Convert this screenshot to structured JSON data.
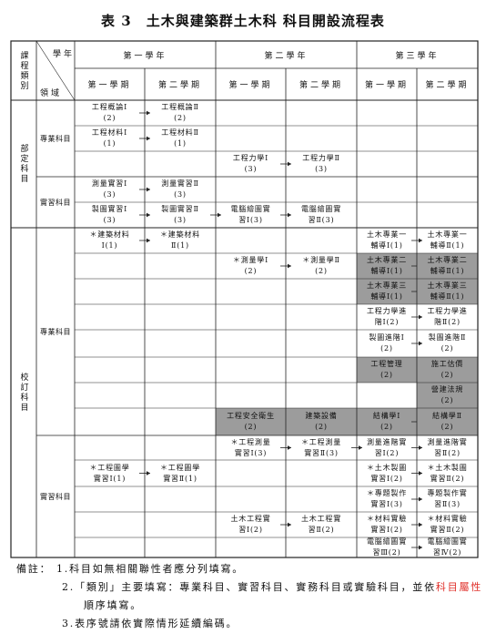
{
  "header": {
    "title": "表 3　土木與建築群土木科 科目開設流程表"
  },
  "table": {
    "category_label": "課程類別",
    "year_label": "學年",
    "domain_label": "領域",
    "years": [
      "第一學年",
      "第二學年",
      "第三學年"
    ],
    "semesters": [
      "第一學期",
      "第二學期",
      "第一學期",
      "第二學期",
      "第一學期",
      "第二學期"
    ],
    "shade_color": "#9c9c9c",
    "sections": [
      {
        "name": "部定科目",
        "groups": [
          {
            "name": "專業科目",
            "rows": [
              [
                {
                  "lines": [
                    "工程概論Ⅰ",
                    "(2)"
                  ],
                  "arrow": true
                },
                {
                  "lines": [
                    "工程概論Ⅱ",
                    "(2)"
                  ]
                },
                null,
                null,
                null,
                null
              ],
              [
                {
                  "lines": [
                    "工程材料Ⅰ",
                    "(1)"
                  ],
                  "arrow": true
                },
                {
                  "lines": [
                    "工程材料Ⅱ",
                    "(1)"
                  ]
                },
                null,
                null,
                null,
                null
              ],
              [
                null,
                null,
                {
                  "lines": [
                    "工程力學Ⅰ",
                    "(3)"
                  ],
                  "arrow": true
                },
                {
                  "lines": [
                    "工程力學Ⅱ",
                    "(3)"
                  ]
                },
                null,
                null
              ]
            ]
          },
          {
            "name": "實習科目",
            "rows": [
              [
                {
                  "lines": [
                    "測量實習Ⅰ",
                    "(3)"
                  ],
                  "arrow": true
                },
                {
                  "lines": [
                    "測量實習Ⅱ",
                    "(3)"
                  ]
                },
                null,
                null,
                null,
                null
              ],
              [
                {
                  "lines": [
                    "製圖實習Ⅰ",
                    "(3)"
                  ],
                  "arrow": true
                },
                {
                  "lines": [
                    "製圖實習Ⅱ",
                    "(3)"
                  ],
                  "arrow": true
                },
                {
                  "lines": [
                    "電腦繪圖實",
                    "習Ⅰ(3)"
                  ],
                  "arrow": true
                },
                {
                  "lines": [
                    "電腦繪圖實",
                    "習Ⅱ(3)"
                  ]
                },
                null,
                null
              ]
            ]
          }
        ]
      },
      {
        "name": "校訂科目",
        "groups": [
          {
            "name": "專業科目",
            "rows": [
              [
                {
                  "lines": [
                    "＊建築材料",
                    "Ⅰ(1)"
                  ],
                  "arrow": true
                },
                {
                  "lines": [
                    "＊建築材料",
                    "Ⅱ(1)"
                  ]
                },
                null,
                null,
                {
                  "lines": [
                    "土木專業一",
                    "輔導Ⅰ(1)"
                  ],
                  "arrow": true
                },
                {
                  "lines": [
                    "土木專業一",
                    "輔導Ⅱ(1)"
                  ]
                }
              ],
              [
                null,
                null,
                {
                  "lines": [
                    "＊測量學Ⅰ",
                    "(2)"
                  ],
                  "arrow": true
                },
                {
                  "lines": [
                    "＊測量學Ⅱ",
                    "(2)"
                  ]
                },
                {
                  "lines": [
                    "土木專業二",
                    "輔導Ⅰ(1)"
                  ],
                  "arrow": true,
                  "shaded": true
                },
                {
                  "lines": [
                    "土木專業二",
                    "輔導Ⅱ(1)"
                  ],
                  "shaded": true
                }
              ],
              [
                null,
                null,
                null,
                null,
                {
                  "lines": [
                    "土木專業三",
                    "輔導Ⅰ(1)"
                  ],
                  "arrow": true,
                  "shaded": true
                },
                {
                  "lines": [
                    "土木專業三",
                    "輔導Ⅱ(1)"
                  ],
                  "shaded": true
                }
              ],
              [
                null,
                null,
                null,
                null,
                {
                  "lines": [
                    "工程力學進",
                    "階Ⅰ(2)"
                  ],
                  "arrow": true
                },
                {
                  "lines": [
                    "工程力學進",
                    "階Ⅱ(2)"
                  ]
                }
              ],
              [
                null,
                null,
                null,
                null,
                {
                  "lines": [
                    "製圖進階Ⅰ",
                    "(2)"
                  ],
                  "arrow": true
                },
                {
                  "lines": [
                    "製圖進階Ⅱ",
                    "(2)"
                  ]
                }
              ],
              [
                null,
                null,
                null,
                null,
                {
                  "lines": [
                    "工程管理",
                    "(2)"
                  ],
                  "shaded": true
                },
                {
                  "lines": [
                    "施工估價",
                    "(2)"
                  ],
                  "shaded": true
                }
              ],
              [
                null,
                null,
                null,
                null,
                null,
                {
                  "lines": [
                    "營建法規",
                    "(2)"
                  ],
                  "shaded": true
                }
              ],
              [
                null,
                null,
                {
                  "lines": [
                    "工程安全衛生",
                    "(2)"
                  ],
                  "shaded": true
                },
                {
                  "lines": [
                    "建築設備",
                    "(2)"
                  ],
                  "shaded": true
                },
                {
                  "lines": [
                    "結構學Ⅰ",
                    "(2)"
                  ],
                  "arrow": true,
                  "shaded": true
                },
                {
                  "lines": [
                    "結構學Ⅱ",
                    "(2)"
                  ],
                  "shaded": true
                }
              ]
            ]
          },
          {
            "name": "實習科目",
            "rows": [
              [
                null,
                null,
                {
                  "lines": [
                    "＊工程測量",
                    "實習Ⅰ(3)"
                  ],
                  "arrow": true
                },
                {
                  "lines": [
                    "＊工程測量",
                    "實習Ⅱ(3)"
                  ],
                  "arrow": true
                },
                {
                  "lines": [
                    "測量進階實",
                    "習Ⅰ(2)"
                  ],
                  "arrow": true
                },
                {
                  "lines": [
                    "測量進階實",
                    "習Ⅱ(2)"
                  ]
                }
              ],
              [
                {
                  "lines": [
                    "＊工程圖學",
                    "實習Ⅰ(1)"
                  ],
                  "arrow": true
                },
                {
                  "lines": [
                    "＊工程圖學",
                    "實習Ⅱ(1)"
                  ]
                },
                null,
                null,
                {
                  "lines": [
                    "＊土木製圖",
                    "實習Ⅰ(2)"
                  ],
                  "arrow": true
                },
                {
                  "lines": [
                    "＊土木製圖",
                    "實習Ⅱ(2)"
                  ]
                }
              ],
              [
                null,
                null,
                null,
                null,
                {
                  "lines": [
                    "＊專題製作",
                    "實習Ⅰ(3)"
                  ],
                  "arrow": true
                },
                {
                  "lines": [
                    "專題製作實",
                    "習Ⅱ(3)"
                  ]
                }
              ],
              [
                null,
                null,
                {
                  "lines": [
                    "土木工程實",
                    "習Ⅰ(2)"
                  ],
                  "arrow": true
                },
                {
                  "lines": [
                    "土木工程實",
                    "習Ⅱ(2)"
                  ]
                },
                {
                  "lines": [
                    "＊材料實驗",
                    "實習Ⅰ(2)"
                  ],
                  "arrow": true
                },
                {
                  "lines": [
                    "＊材料實驗",
                    "實習Ⅱ(2)"
                  ]
                }
              ],
              [
                null,
                null,
                null,
                null,
                {
                  "lines": [
                    "電腦繪圖實",
                    "習Ⅲ(2)"
                  ],
                  "arrow": true
                },
                {
                  "lines": [
                    "電腦繪圖實",
                    "習Ⅳ(2)"
                  ]
                }
              ]
            ]
          }
        ]
      }
    ]
  },
  "notes": {
    "label": "備註：",
    "items": [
      [
        {
          "text": "1.科目如無相關聯性者應分列填寫。"
        }
      ],
      [
        {
          "text": "2.「類別」主要填寫：專業科目、實習科目、實務科目或實驗科目，並依"
        },
        {
          "text": "科目屬性",
          "color": "#e0302a"
        },
        {
          "text": "順序填寫。"
        }
      ],
      [
        {
          "text": "3.表序號請依實際情形延續編碼。"
        }
      ]
    ]
  }
}
